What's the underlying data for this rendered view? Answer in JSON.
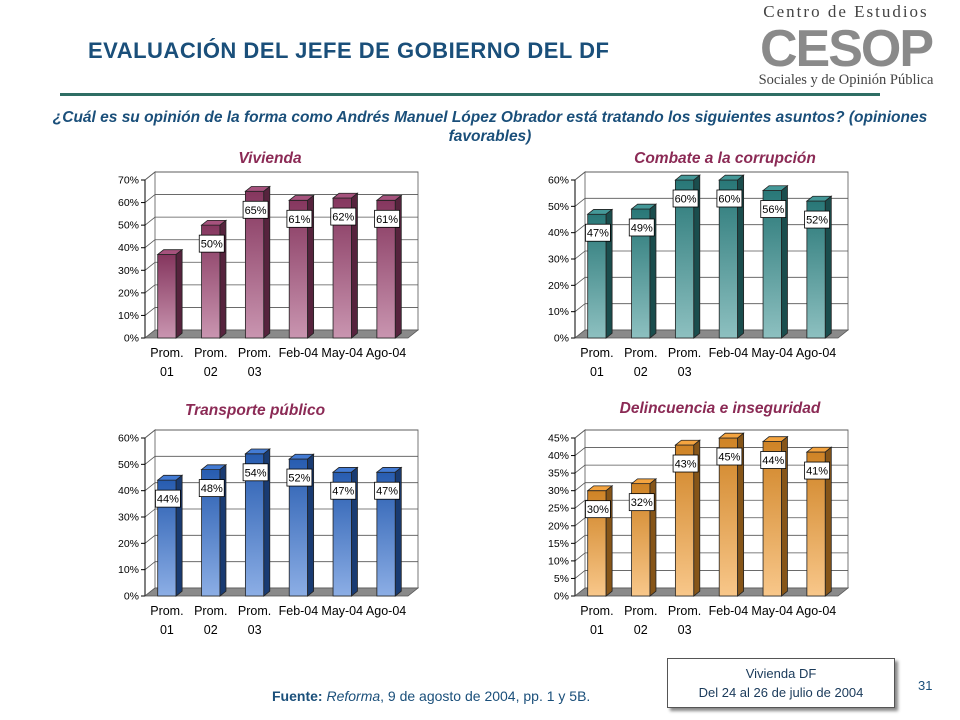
{
  "header": {
    "title": "EVALUACIÓN DEL JEFE DE GOBIERNO DEL DF",
    "logo_top": "Centro de Estudios",
    "logo_mark": "CESOP",
    "logo_bottom": "Sociales y de Opinión Pública"
  },
  "question": "¿Cuál es su opinión de la forma como Andrés Manuel López Obrador está tratando los siguientes asuntos? (opiniones favorables)",
  "chart_data": [
    {
      "type": "bar",
      "title": "Vivienda",
      "categories": [
        [
          "Prom.",
          "01"
        ],
        [
          "Prom.",
          "02"
        ],
        [
          "Prom.",
          "03"
        ],
        [
          "Feb-04"
        ],
        [
          "May-04"
        ],
        [
          "Ago-04"
        ]
      ],
      "values": [
        37,
        50,
        65,
        61,
        62,
        61
      ],
      "labels": [
        "",
        "50%",
        "65%",
        "61%",
        "62%",
        "61%"
      ],
      "ylim": [
        0,
        70
      ],
      "ystep": 10,
      "color": "#9c3f6f",
      "grid": true
    },
    {
      "type": "bar",
      "title": "Combate a la corrupción",
      "categories": [
        [
          "Prom.",
          "01"
        ],
        [
          "Prom.",
          "02"
        ],
        [
          "Prom.",
          "03"
        ],
        [
          "Feb-04"
        ],
        [
          "May-04"
        ],
        [
          "Ago-04"
        ]
      ],
      "values": [
        47,
        49,
        60,
        60,
        56,
        52
      ],
      "labels": [
        "47%",
        "49%",
        "60%",
        "60%",
        "56%",
        "52%"
      ],
      "ylim": [
        0,
        60
      ],
      "ystep": 10,
      "color": "#2f8c8c",
      "grid": true
    },
    {
      "type": "bar",
      "title": "Transporte público",
      "categories": [
        [
          "Prom.",
          "01"
        ],
        [
          "Prom.",
          "02"
        ],
        [
          "Prom.",
          "03"
        ],
        [
          "Feb-04"
        ],
        [
          "May-04"
        ],
        [
          "Ago-04"
        ]
      ],
      "values": [
        44,
        48,
        54,
        52,
        47,
        47
      ],
      "labels": [
        "44%",
        "48%",
        "54%",
        "52%",
        "47%",
        "47%"
      ],
      "ylim": [
        0,
        60
      ],
      "ystep": 10,
      "color": "#2e6ccf",
      "grid": true
    },
    {
      "type": "bar",
      "title": "Delincuencia e inseguridad",
      "categories": [
        [
          "Prom.",
          "01"
        ],
        [
          "Prom.",
          "02"
        ],
        [
          "Prom.",
          "03"
        ],
        [
          "Feb-04"
        ],
        [
          "May-04"
        ],
        [
          "Ago-04"
        ]
      ],
      "values": [
        30,
        32,
        43,
        45,
        44,
        41
      ],
      "labels": [
        "30%",
        "32%",
        "43%",
        "45%",
        "44%",
        "41%"
      ],
      "ylim": [
        0,
        45
      ],
      "ystep": 5,
      "color": "#f39a2b",
      "grid": true
    }
  ],
  "footer": {
    "source_label": "Fuente:",
    "source_pub": "Reforma",
    "source_rest": ", 9 de agosto de 2004, pp. 1 y 5B.",
    "note_line1": "Vivienda DF",
    "note_line2": "Del 24 al 26 de julio de 2004",
    "page_number": "31"
  },
  "colors": {
    "title": "#1a4f7a",
    "chart_title": "#8b2a55",
    "rule": "#2e6e64"
  }
}
